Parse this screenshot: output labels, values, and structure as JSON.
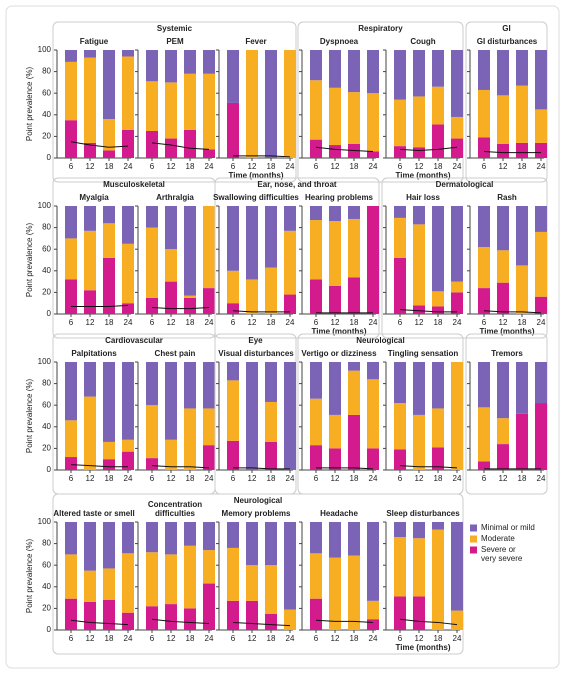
{
  "ylabel": "Point prevalence (%)",
  "xlabel": "Time (months)",
  "x": [
    6,
    12,
    18,
    24
  ],
  "ylim": [
    0,
    100
  ],
  "yticks": [
    0,
    20,
    40,
    60,
    80,
    100
  ],
  "legend": [
    {
      "name": "Minimal or mild",
      "color": "#7b63b6"
    },
    {
      "name": "Moderate",
      "color": "#f7ae22"
    },
    {
      "name": "Severe or\nvery severe",
      "color": "#d41b8e"
    }
  ],
  "groups": [
    {
      "title": "Systemic",
      "panels": [
        {
          "type": "bar",
          "stacked": true,
          "title": "Fatigue",
          "series": [
            {
              "values": [
                11,
                7,
                64,
                6
              ]
            },
            {
              "values": [
                54,
                79,
                29,
                68
              ]
            },
            {
              "values": [
                35,
                14,
                7,
                26
              ]
            }
          ],
          "line": [
            15,
            12,
            10,
            11
          ]
        },
        {
          "type": "bar",
          "stacked": true,
          "title": "PEM",
          "series": [
            {
              "values": [
                29,
                30,
                22,
                22
              ]
            },
            {
              "values": [
                46,
                52,
                52,
                70
              ]
            },
            {
              "values": [
                25,
                18,
                26,
                8
              ]
            }
          ],
          "line": [
            14,
            12,
            9,
            8
          ]
        },
        {
          "type": "bar",
          "stacked": true,
          "title": "Fever",
          "series": [
            {
              "values": [
                49,
                0,
                100,
                0
              ]
            },
            {
              "values": [
                0,
                100,
                0,
                100
              ]
            },
            {
              "values": [
                51,
                0,
                0,
                0
              ]
            }
          ],
          "line": [
            2,
            2,
            2,
            1
          ],
          "xlabel": true
        }
      ]
    },
    {
      "title": "Respiratory",
      "panels": [
        {
          "type": "bar",
          "stacked": true,
          "title": "Dyspnoea",
          "series": [
            {
              "values": [
                28,
                35,
                39,
                40
              ]
            },
            {
              "values": [
                55,
                53,
                48,
                54
              ]
            },
            {
              "values": [
                17,
                12,
                13,
                6
              ]
            }
          ],
          "line": [
            10,
            8,
            7,
            6
          ]
        },
        {
          "type": "bar",
          "stacked": true,
          "title": "Cough",
          "series": [
            {
              "values": [
                46,
                43,
                34,
                62
              ]
            },
            {
              "values": [
                43,
                47,
                35,
                20
              ]
            },
            {
              "values": [
                11,
                10,
                31,
                18
              ]
            }
          ],
          "line": [
            8,
            7,
            8,
            10
          ],
          "xlabel": true
        }
      ]
    },
    {
      "title": "GI",
      "panels": [
        {
          "type": "bar",
          "stacked": true,
          "title": "GI disturbances",
          "series": [
            {
              "values": [
                37,
                42,
                33,
                55
              ]
            },
            {
              "values": [
                44,
                45,
                53,
                31
              ]
            },
            {
              "values": [
                19,
                13,
                14,
                14
              ]
            }
          ],
          "line": [
            6,
            5,
            5,
            5
          ]
        }
      ]
    },
    {
      "title": "Musculoskeletal",
      "panels": [
        {
          "type": "bar",
          "stacked": true,
          "title": "Myalgia",
          "series": [
            {
              "values": [
                30,
                23,
                16,
                35
              ]
            },
            {
              "values": [
                38,
                55,
                32,
                55
              ]
            },
            {
              "values": [
                32,
                22,
                52,
                10
              ]
            }
          ],
          "line": [
            7,
            7,
            7,
            8
          ]
        },
        {
          "type": "bar",
          "stacked": true,
          "title": "Arthralgia",
          "series": [
            {
              "values": [
                20,
                40,
                83,
                0
              ]
            },
            {
              "values": [
                65,
                30,
                2,
                76
              ]
            },
            {
              "values": [
                15,
                30,
                15,
                24
              ]
            }
          ],
          "line": [
            6,
            5,
            5,
            6
          ]
        }
      ]
    },
    {
      "title": "Ear, nose, and throat",
      "panels": [
        {
          "type": "bar",
          "stacked": true,
          "title": "Swallowing difficulties",
          "series": [
            {
              "values": [
                60,
                68,
                57,
                23
              ]
            },
            {
              "values": [
                30,
                32,
                43,
                59
              ]
            },
            {
              "values": [
                10,
                0,
                0,
                18
              ]
            }
          ],
          "line": [
            3,
            2,
            2,
            2
          ]
        },
        {
          "type": "bar",
          "stacked": true,
          "title": "Hearing problems",
          "series": [
            {
              "values": [
                13,
                14,
                12,
                0
              ]
            },
            {
              "values": [
                55,
                60,
                54,
                0
              ]
            },
            {
              "values": [
                32,
                26,
                34,
                100
              ]
            }
          ],
          "line": [
            1,
            1,
            1,
            1
          ],
          "xlabel": true
        }
      ]
    },
    {
      "title": "Dermatological",
      "panels": [
        {
          "type": "bar",
          "stacked": true,
          "title": "Hair loss",
          "series": [
            {
              "values": [
                11,
                17,
                79,
                70
              ]
            },
            {
              "values": [
                37,
                75,
                14,
                10
              ]
            },
            {
              "values": [
                52,
                8,
                7,
                20
              ]
            }
          ],
          "line": [
            4,
            3,
            2,
            2
          ]
        },
        {
          "type": "bar",
          "stacked": true,
          "title": "Rash",
          "series": [
            {
              "values": [
                38,
                41,
                55,
                24
              ]
            },
            {
              "values": [
                38,
                30,
                45,
                60
              ]
            },
            {
              "values": [
                24,
                29,
                0,
                16
              ]
            }
          ],
          "line": [
            3,
            2,
            2,
            1
          ],
          "xlabel": true
        }
      ]
    },
    {
      "title": "Cardiovascular",
      "panels": [
        {
          "type": "bar",
          "stacked": true,
          "title": "Palpitations",
          "series": [
            {
              "values": [
                54,
                32,
                74,
                72
              ]
            },
            {
              "values": [
                34,
                68,
                16,
                11
              ]
            },
            {
              "values": [
                12,
                0,
                10,
                17
              ]
            }
          ],
          "line": [
            5,
            4,
            3,
            3
          ]
        },
        {
          "type": "bar",
          "stacked": true,
          "title": "Chest pain",
          "series": [
            {
              "values": [
                40,
                72,
                43,
                43
              ]
            },
            {
              "values": [
                49,
                28,
                57,
                34
              ]
            },
            {
              "values": [
                11,
                0,
                0,
                23
              ]
            }
          ],
          "line": [
            4,
            3,
            3,
            2
          ]
        }
      ]
    },
    {
      "title": "Eye",
      "panels": [
        {
          "type": "bar",
          "stacked": true,
          "title": "Visual disturbances",
          "series": [
            {
              "values": [
                17,
                100,
                37,
                100
              ]
            },
            {
              "values": [
                56,
                0,
                37,
                0
              ]
            },
            {
              "values": [
                27,
                0,
                26,
                0
              ]
            }
          ],
          "line": [
            2,
            2,
            1,
            1
          ]
        }
      ]
    },
    {
      "title": "Neurological",
      "panels": [
        {
          "type": "bar",
          "stacked": true,
          "title": "Vertigo or dizziness",
          "series": [
            {
              "values": [
                34,
                49,
                8,
                16
              ]
            },
            {
              "values": [
                43,
                31,
                41,
                64
              ]
            },
            {
              "values": [
                23,
                20,
                51,
                20
              ]
            }
          ],
          "line": [
            2,
            2,
            2,
            1
          ]
        },
        {
          "type": "bar",
          "stacked": true,
          "title": "Tingling sensation",
          "series": [
            {
              "values": [
                38,
                49,
                43,
                0
              ]
            },
            {
              "values": [
                43,
                51,
                36,
                100
              ]
            },
            {
              "values": [
                19,
                0,
                21,
                0
              ]
            }
          ],
          "line": [
            4,
            3,
            3,
            2
          ]
        }
      ]
    },
    {
      "panels": [
        {
          "type": "bar",
          "stacked": true,
          "title": "Tremors",
          "series": [
            {
              "values": [
                42,
                52,
                48,
                38
              ]
            },
            {
              "values": [
                50,
                24,
                0,
                0
              ]
            },
            {
              "values": [
                8,
                24,
                52,
                62
              ]
            }
          ],
          "line": [
            1,
            1,
            1,
            1
          ]
        }
      ]
    },
    {
      "title": "Neurological",
      "panels": [
        {
          "type": "bar",
          "stacked": true,
          "title": "Altered taste or smell",
          "series": [
            {
              "values": [
                30,
                45,
                43,
                29
              ]
            },
            {
              "values": [
                41,
                29,
                29,
                55
              ]
            },
            {
              "values": [
                29,
                26,
                28,
                16
              ]
            }
          ],
          "line": [
            9,
            7,
            6,
            5
          ]
        },
        {
          "type": "bar",
          "stacked": true,
          "title": "Concentration\ndifficulties",
          "series": [
            {
              "values": [
                28,
                30,
                22,
                26
              ]
            },
            {
              "values": [
                50,
                46,
                58,
                31
              ]
            },
            {
              "values": [
                22,
                24,
                20,
                43
              ]
            }
          ],
          "line": [
            10,
            8,
            7,
            6
          ]
        },
        {
          "type": "bar",
          "stacked": true,
          "title": "Memory problems",
          "series": [
            {
              "values": [
                24,
                40,
                40,
                81
              ]
            },
            {
              "values": [
                49,
                33,
                45,
                19
              ]
            },
            {
              "values": [
                27,
                27,
                15,
                0
              ]
            }
          ],
          "line": [
            7,
            6,
            5,
            4
          ]
        },
        {
          "type": "bar",
          "stacked": true,
          "title": "Headache",
          "series": [
            {
              "values": [
                29,
                33,
                31,
                73
              ]
            },
            {
              "values": [
                42,
                67,
                69,
                17
              ]
            },
            {
              "values": [
                29,
                0,
                0,
                10
              ]
            }
          ],
          "line": [
            9,
            8,
            8,
            7
          ]
        },
        {
          "type": "bar",
          "stacked": true,
          "title": "Sleep disturbances",
          "series": [
            {
              "values": [
                14,
                15,
                7,
                82
              ]
            },
            {
              "values": [
                55,
                54,
                93,
                18
              ]
            },
            {
              "values": [
                31,
                31,
                0,
                0
              ]
            }
          ],
          "line": [
            10,
            8,
            7,
            5
          ],
          "xlabel": true
        }
      ]
    }
  ]
}
